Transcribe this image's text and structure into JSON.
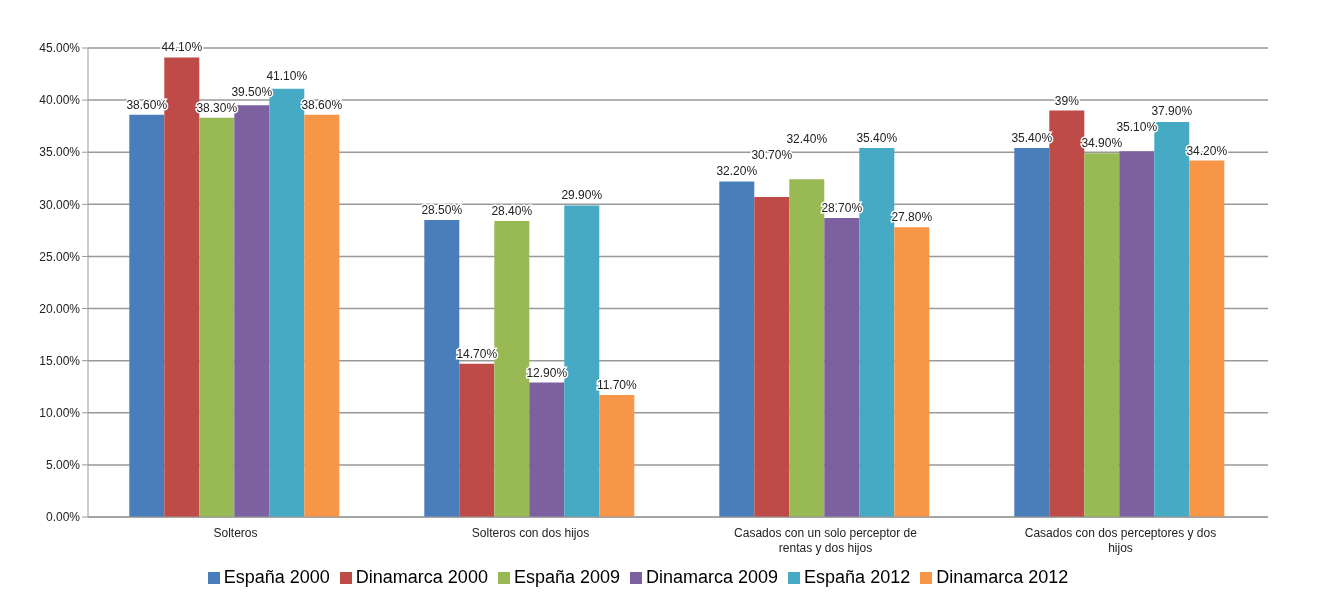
{
  "chart_data": {
    "type": "bar",
    "categories": [
      "Solteros",
      "Solteros con dos hijos",
      "Casados con un solo perceptor de rentas y dos hijos",
      "Casados con dos perceptores y dos hijos"
    ],
    "series": [
      {
        "name": "España 2000",
        "color": "#4a7ebb",
        "values": [
          38.6,
          28.5,
          32.2,
          35.4
        ],
        "value_labels": [
          "38.60%",
          "28.50%",
          "32.20%",
          "35.40%"
        ]
      },
      {
        "name": "Dinamarca 2000",
        "color": "#be4b48",
        "values": [
          44.1,
          14.7,
          30.7,
          39
        ],
        "value_labels": [
          "44.10%",
          "14.70%",
          "30.70%",
          "39%"
        ]
      },
      {
        "name": "España 2009",
        "color": "#98b954",
        "values": [
          38.3,
          28.4,
          32.4,
          34.9
        ],
        "value_labels": [
          "38.30%",
          "28.40%",
          "32.40%",
          "34.90%"
        ]
      },
      {
        "name": "Dinamarca 2009",
        "color": "#7d60a0",
        "values": [
          39.5,
          12.9,
          28.7,
          35.1
        ],
        "value_labels": [
          "39.50%",
          "12.90%",
          "28.70%",
          "35.10%"
        ]
      },
      {
        "name": "España 2012",
        "color": "#46aac5",
        "values": [
          41.1,
          29.9,
          35.4,
          37.9
        ],
        "value_labels": [
          "41.10%",
          "29.90%",
          "35.40%",
          "37.90%"
        ]
      },
      {
        "name": "Dinamarca 2012",
        "color": "#f79646",
        "values": [
          38.6,
          11.7,
          27.8,
          34.2
        ],
        "value_labels": [
          "38.60%",
          "11.70%",
          "27.80%",
          "34.20%"
        ]
      }
    ],
    "ylim": [
      0,
      45
    ],
    "yticks": [
      {
        "value": 0,
        "label": "0.00%"
      },
      {
        "value": 5,
        "label": "5.00%"
      },
      {
        "value": 10,
        "label": "10.00%"
      },
      {
        "value": 15,
        "label": "15.00%"
      },
      {
        "value": 20,
        "label": "20.00%"
      },
      {
        "value": 25,
        "label": "25.00%"
      },
      {
        "value": 30,
        "label": "30.00%"
      },
      {
        "value": 35,
        "label": "35.00%"
      },
      {
        "value": 40,
        "label": "40.00%"
      },
      {
        "value": 45,
        "label": "45.00%"
      }
    ],
    "grid": "y",
    "legend": "bottom"
  }
}
